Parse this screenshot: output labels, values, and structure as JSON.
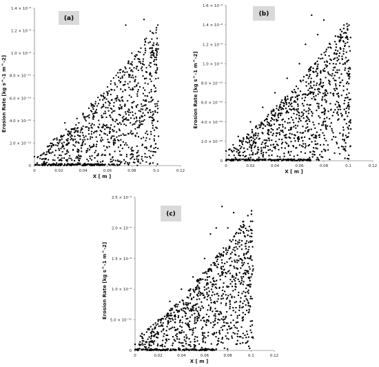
{
  "chart_data": [
    {
      "type": "scatter",
      "panel_label": "(a)",
      "xlabel": "X [ m ]",
      "ylabel": "Erosion Rate [kg s^-1 m^-2]",
      "xlim": [
        0,
        0.12
      ],
      "ylim": [
        0,
        1.4e-09
      ],
      "x_ticks": [
        "0",
        "0.02",
        "0.04",
        "0.06",
        "0.08",
        "0.1",
        "0.12"
      ],
      "y_ticks": [
        "0",
        "2.0 × 10⁻¹⁰",
        "4.0 × 10⁻¹⁰",
        "6.0 × 10⁻¹⁰",
        "8.0 × 10⁻¹⁰",
        "1.0 × 10⁻⁹",
        "1.2 × 10⁻⁹",
        "1.4 × 10⁻⁹"
      ],
      "grid": false,
      "marker_color": "#000000",
      "cloud": {
        "x_range": [
          0,
          0.102
        ],
        "description_of_trend": "erosion rate increases with x; dense band of near-zero values along the bottom from 0 to ~0.07",
        "max_y": 1.3e-09
      },
      "points": [
        [
          0.0,
          8e-11
        ],
        [
          0.005,
          9e-11
        ],
        [
          0.01,
          1e-10
        ],
        [
          0.015,
          1.2e-10
        ],
        [
          0.02,
          1.5e-10
        ],
        [
          0.025,
          3.8e-10
        ],
        [
          0.03,
          3e-10
        ],
        [
          0.035,
          3.3e-10
        ],
        [
          0.04,
          3.5e-10
        ],
        [
          0.045,
          4.5e-10
        ],
        [
          0.05,
          5.5e-10
        ],
        [
          0.055,
          6.2e-10
        ],
        [
          0.06,
          7e-10
        ],
        [
          0.065,
          7.8e-10
        ],
        [
          0.07,
          8.5e-10
        ],
        [
          0.075,
          1.25e-09
        ],
        [
          0.08,
          1e-09
        ],
        [
          0.085,
          9.5e-10
        ],
        [
          0.09,
          1.3e-09
        ],
        [
          0.095,
          1.1e-09
        ],
        [
          0.1,
          9e-10
        ]
      ]
    },
    {
      "type": "scatter",
      "panel_label": "(b)",
      "xlabel": "X [ m ]",
      "ylabel": "Erosion Rate [kg s^-1 m^-2]",
      "xlim": [
        0,
        0.12
      ],
      "ylim": [
        0,
        1.6e-09
      ],
      "x_ticks": [
        "0",
        "0.02",
        "0.04",
        "0.06",
        "0.08",
        "0.1",
        "0.12"
      ],
      "y_ticks": [
        "0",
        "2.0 × 10⁻¹⁰",
        "4.0 × 10⁻¹⁰",
        "6.0 × 10⁻¹⁰",
        "8.0 × 10⁻¹⁰",
        "1.0 × 10⁻⁹",
        "1.2 × 10⁻⁹",
        "1.4 × 10⁻⁹",
        "1.6 × 10⁻⁹"
      ],
      "grid": false,
      "marker_color": "#000000",
      "cloud": {
        "x_range": [
          0,
          0.102
        ],
        "description_of_trend": "erosion rate increases with x, wider spread; dense near-zero band from 0 to ~0.07",
        "max_y": 1.5e-09
      },
      "points": [
        [
          0.0,
          1e-10
        ],
        [
          0.01,
          2.5e-10
        ],
        [
          0.02,
          4e-10
        ],
        [
          0.03,
          5.5e-10
        ],
        [
          0.04,
          7e-10
        ],
        [
          0.05,
          8.5e-10
        ],
        [
          0.06,
          1e-09
        ],
        [
          0.065,
          1.2e-09
        ],
        [
          0.07,
          1.5e-09
        ],
        [
          0.075,
          1.3e-09
        ],
        [
          0.08,
          1.45e-09
        ],
        [
          0.085,
          1.2e-09
        ],
        [
          0.09,
          1.1e-09
        ],
        [
          0.095,
          1.05e-09
        ],
        [
          0.1,
          9.5e-10
        ]
      ]
    },
    {
      "type": "scatter",
      "panel_label": "(c)",
      "xlabel": "X [ m ]",
      "ylabel": "Erosion Rate [kg s^-1 m^-2]",
      "xlim": [
        0,
        0.12
      ],
      "ylim": [
        0,
        2.5e-09
      ],
      "x_ticks": [
        "0",
        "0.02",
        "0.04",
        "0.06",
        "0.08",
        "0.1",
        "0.12"
      ],
      "y_ticks": [
        "0",
        "5.0 × 10⁻¹⁰",
        "1.0 × 10⁻⁹",
        "1.5 × 10⁻⁹",
        "2.0 × 10⁻⁹",
        "2.5 × 10⁻⁹"
      ],
      "grid": false,
      "marker_color": "#000000",
      "cloud": {
        "x_range": [
          0,
          0.102
        ],
        "description_of_trend": "broad spread increasing with x; dense near-zero band from 0 to ~0.07",
        "max_y": 2.35e-09
      },
      "points": [
        [
          0.0,
          1e-10
        ],
        [
          0.01,
          3e-10
        ],
        [
          0.02,
          5e-10
        ],
        [
          0.03,
          8e-10
        ],
        [
          0.04,
          1e-09
        ],
        [
          0.05,
          1.2e-09
        ],
        [
          0.06,
          1.5e-09
        ],
        [
          0.065,
          1.9e-09
        ],
        [
          0.07,
          2e-09
        ],
        [
          0.075,
          2.35e-09
        ],
        [
          0.08,
          2e-09
        ],
        [
          0.085,
          2.25e-09
        ],
        [
          0.09,
          1.8e-09
        ],
        [
          0.095,
          1.5e-09
        ],
        [
          0.1,
          1.2e-09
        ]
      ]
    }
  ]
}
